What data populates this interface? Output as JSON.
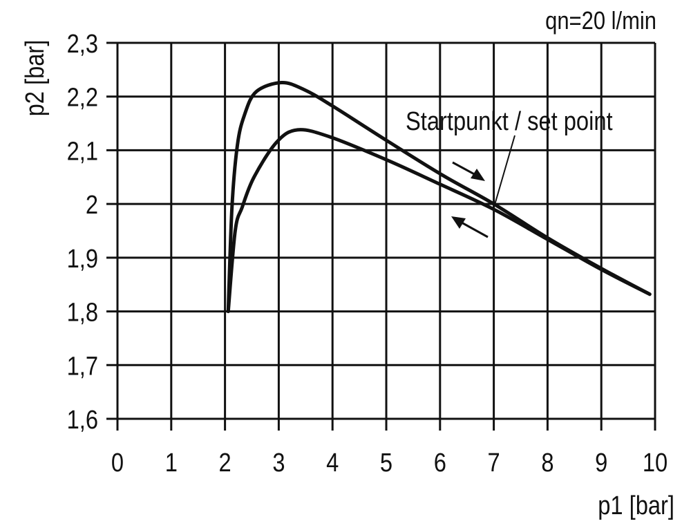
{
  "chart_data": {
    "type": "line",
    "title": "",
    "annotation_top": "qn=20 l/min",
    "xlabel": "p1 [bar]",
    "ylabel": "p2 [bar]",
    "xlim": [
      0,
      10
    ],
    "ylim": [
      1.6,
      2.3
    ],
    "grid": true,
    "x_ticks": [
      0,
      1,
      2,
      3,
      4,
      5,
      6,
      7,
      8,
      9,
      10
    ],
    "x_tick_labels": [
      "0",
      "1",
      "2",
      "3",
      "4",
      "5",
      "6",
      "7",
      "8",
      "9",
      "10"
    ],
    "y_ticks": [
      1.6,
      1.7,
      1.8,
      1.9,
      2.0,
      2.1,
      2.2,
      2.3
    ],
    "y_tick_labels": [
      "1,6",
      "1,7",
      "1,8",
      "1,9",
      "2",
      "2,1",
      "2,2",
      "2,3"
    ],
    "series": [
      {
        "direction": "increasing p1",
        "points": [
          [
            2.06,
            1.8
          ],
          [
            2.13,
            1.994
          ],
          [
            2.23,
            2.109
          ],
          [
            2.36,
            2.165
          ],
          [
            2.58,
            2.209
          ],
          [
            3.05,
            2.226
          ],
          [
            3.47,
            2.213
          ],
          [
            3.99,
            2.183
          ],
          [
            5.01,
            2.118
          ],
          [
            6.04,
            2.054
          ],
          [
            7.0,
            2.0
          ],
          [
            8.0,
            1.937
          ],
          [
            9.0,
            1.88
          ],
          [
            9.9,
            1.832
          ]
        ]
      },
      {
        "direction": "decreasing p1",
        "points": [
          [
            2.06,
            1.8
          ],
          [
            2.19,
            1.95
          ],
          [
            2.32,
            1.994
          ],
          [
            2.54,
            2.05
          ],
          [
            2.96,
            2.115
          ],
          [
            3.35,
            2.138
          ],
          [
            3.95,
            2.125
          ],
          [
            5.01,
            2.082
          ],
          [
            5.95,
            2.039
          ],
          [
            7.0,
            1.99
          ],
          [
            8.0,
            1.934
          ],
          [
            9.0,
            1.878
          ],
          [
            9.9,
            1.832
          ]
        ]
      }
    ],
    "annotations": [
      {
        "text": "Startpunkt / set point",
        "points_to": [
          7.0,
          2.0
        ]
      }
    ],
    "line_color": "#111111",
    "grid_color": "#111111"
  }
}
